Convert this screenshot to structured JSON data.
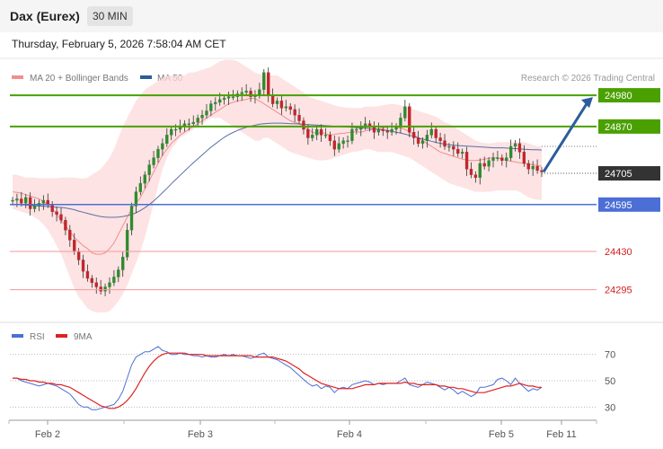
{
  "header": {
    "instrument": "Dax (Eurex)",
    "timeframe": "30 MIN",
    "datetime": "Thursday, February 5, 2026 7:58:04 AM CET"
  },
  "legend": {
    "ma20": "MA 20 + Bollinger Bands",
    "ma50": "MA 50",
    "credit": "Research © 2026 Trading Central",
    "rsi": "RSI",
    "rsi_ma": "9MA"
  },
  "colors": {
    "green": "#4aa000",
    "blue": "#4b6fd6",
    "red": "#e8453c",
    "candle_up": "#2e8b2e",
    "candle_down": "#c0262c",
    "band": "#fcdada",
    "ma20": "#f08f8f",
    "ma50": "#5a6fa8",
    "arrow": "#2b5d9c",
    "current": "#333333"
  },
  "chart_data": [
    {
      "type": "candlestick",
      "x_ticks": [
        "Feb 2",
        "Feb 3",
        "Feb 4",
        "Feb 5",
        "Feb 11"
      ],
      "ylim": [
        24180,
        25110
      ],
      "levels": [
        {
          "value": 24980,
          "label": "24980",
          "kind": "resistance"
        },
        {
          "value": 24870,
          "label": "24870",
          "kind": "resistance"
        },
        {
          "value": 24705,
          "label": "24705",
          "kind": "current"
        },
        {
          "value": 24595,
          "label": "24595",
          "kind": "pivot"
        },
        {
          "value": 24430,
          "label": "24430",
          "kind": "support"
        },
        {
          "value": 24295,
          "label": "24295",
          "kind": "support"
        }
      ],
      "close": [
        24610,
        24615,
        24600,
        24620,
        24580,
        24590,
        24600,
        24610,
        24595,
        24570,
        24560,
        24540,
        24505,
        24470,
        24430,
        24400,
        24360,
        24335,
        24320,
        24305,
        24290,
        24305,
        24320,
        24340,
        24365,
        24410,
        24505,
        24590,
        24640,
        24670,
        24700,
        24735,
        24760,
        24790,
        24810,
        24840,
        24860,
        24860,
        24870,
        24880,
        24880,
        24885,
        24900,
        24910,
        24925,
        24950,
        24955,
        24965,
        24970,
        24975,
        24975,
        24985,
        24990,
        24995,
        24975,
        24980,
        25000,
        25060,
        24980,
        24950,
        24960,
        24935,
        24940,
        24930,
        24910,
        24890,
        24860,
        24830,
        24840,
        24860,
        24840,
        24840,
        24820,
        24790,
        24810,
        24820,
        24820,
        24860,
        24860,
        24870,
        24880,
        24870,
        24850,
        24860,
        24855,
        24850,
        24860,
        24870,
        24900,
        24940,
        24850,
        24830,
        24810,
        24820,
        24840,
        24860,
        24830,
        24820,
        24800,
        24800,
        24790,
        24775,
        24780,
        24720,
        24700,
        24690,
        24740,
        24730,
        24750,
        24760,
        24760,
        24750,
        24760,
        24800,
        24810,
        24780,
        24740,
        24720,
        24730,
        24715,
        24710
      ],
      "ma20": [
        24640,
        24638,
        24635,
        24630,
        24625,
        24620,
        24615,
        24605,
        24595,
        24580,
        24560,
        24540,
        24520,
        24500,
        24480,
        24465,
        24450,
        24440,
        24425,
        24420,
        24420,
        24425,
        24440,
        24460,
        24490,
        24520,
        24550,
        24580,
        24600,
        24620,
        24650,
        24680,
        24710,
        24740,
        24770,
        24790,
        24810,
        24825,
        24840,
        24850,
        24860,
        24870,
        24880,
        24890,
        24900,
        24910,
        24920,
        24930,
        24940,
        24950,
        24955,
        24960,
        24962,
        24965,
        24970,
        24968,
        24960,
        24950,
        24940,
        24930,
        24920,
        24910,
        24900,
        24890,
        24885,
        24880,
        24870,
        24860,
        24850,
        24845,
        24850,
        24845,
        24840,
        24842,
        24845,
        24846,
        24848,
        24850,
        24852,
        24850,
        24855,
        24858,
        24860,
        24862,
        24865,
        24868,
        24870,
        24868,
        24865,
        24860,
        24850,
        24840,
        24830,
        24820,
        24810,
        24800,
        24790,
        24780,
        24775,
        24770,
        24765,
        24760,
        24755,
        24752,
        24750,
        24750,
        24752,
        24755,
        24758,
        24760,
        24760,
        24755,
        24750,
        24748,
        24745,
        24742,
        24740,
        24738,
        24735,
        24733,
        24730
      ],
      "band_upper": [
        24700,
        24700,
        24695,
        24690,
        24690,
        24690,
        24688,
        24688,
        24688,
        24688,
        24688,
        24690,
        24690,
        24690,
        24690,
        24688,
        24686,
        24690,
        24700,
        24710,
        24720,
        24740,
        24760,
        24790,
        24830,
        24870,
        24900,
        24930,
        24960,
        24980,
        25000,
        25010,
        25020,
        25030,
        25040,
        25050,
        25050,
        25050,
        25050,
        25050,
        25060,
        25060,
        25065,
        25070,
        25075,
        25080,
        25090,
        25100,
        25105,
        25105,
        25105,
        25100,
        25090,
        25080,
        25070,
        25060,
        25055,
        25050,
        25050,
        25050,
        25050,
        25040,
        25030,
        25020,
        25010,
        25000,
        24990,
        24975,
        24970,
        24965,
        24960,
        24955,
        24950,
        24945,
        24940,
        24938,
        24936,
        24935,
        24935,
        24935,
        24940,
        24940,
        24940,
        24942,
        24945,
        24948,
        24950,
        24948,
        24945,
        24940,
        24935,
        24930,
        24925,
        24920,
        24915,
        24910,
        24905,
        24895,
        24885,
        24880,
        24870,
        24860,
        24850,
        24840,
        24830,
        24820,
        24815,
        24812,
        24810,
        24812,
        24815,
        24815,
        24815,
        24815,
        24815,
        24815,
        24815,
        24810,
        24805,
        24800,
        24800
      ],
      "band_lower": [
        24580,
        24575,
        24570,
        24565,
        24560,
        24550,
        24540,
        24525,
        24505,
        24480,
        24450,
        24420,
        24380,
        24340,
        24300,
        24270,
        24250,
        24230,
        24220,
        24215,
        24215,
        24215,
        24220,
        24235,
        24255,
        24280,
        24310,
        24350,
        24390,
        24430,
        24480,
        24540,
        24600,
        24660,
        24720,
        24760,
        24790,
        24810,
        24830,
        24840,
        24850,
        24860,
        24870,
        24880,
        24890,
        24900,
        24900,
        24900,
        24890,
        24880,
        24870,
        24860,
        24850,
        24840,
        24830,
        24820,
        24820,
        24830,
        24830,
        24820,
        24810,
        24800,
        24790,
        24780,
        24775,
        24770,
        24765,
        24760,
        24755,
        24752,
        24750,
        24752,
        24755,
        24760,
        24765,
        24770,
        24775,
        24780,
        24782,
        24785,
        24790,
        24790,
        24785,
        24780,
        24780,
        24780,
        24780,
        24775,
        24770,
        24765,
        24760,
        24750,
        24740,
        24730,
        24720,
        24710,
        24700,
        24690,
        24680,
        24670,
        24665,
        24660,
        24655,
        24650,
        24645,
        24640,
        24640,
        24640,
        24640,
        24642,
        24645,
        24645,
        24645,
        24645,
        24645,
        24640,
        24630,
        24620,
        24615,
        24612,
        24610
      ],
      "ma50": [
        24595,
        24595,
        24594,
        24593,
        24592,
        24591,
        24590,
        24589,
        24588,
        24587,
        24586,
        24585,
        24583,
        24580,
        24577,
        24572,
        24568,
        24564,
        24560,
        24556,
        24553,
        24551,
        24550,
        24550,
        24551,
        24553,
        24556,
        24560,
        24566,
        24574,
        24584,
        24595,
        24608,
        24622,
        24637,
        24652,
        24668,
        24683,
        24698,
        24713,
        24728,
        24742,
        24756,
        24770,
        24784,
        24797,
        24809,
        24821,
        24832,
        24841,
        24849,
        24856,
        24862,
        24867,
        24871,
        24875,
        24878,
        24880,
        24881,
        24882,
        24882,
        24882,
        24881,
        24880,
        24880,
        24879,
        24878,
        24877,
        24876,
        24875,
        24874,
        24873,
        24872,
        24871,
        24870,
        24869,
        24868,
        24867,
        24866,
        24865,
        24864,
        24863,
        24862,
        24860,
        24858,
        24856,
        24853,
        24850,
        24847,
        24843,
        24839,
        24835,
        24830,
        24826,
        24822,
        24818,
        24814,
        24811,
        24808,
        24806,
        24804,
        24803,
        24802,
        24801,
        24800,
        24799,
        24798,
        24797,
        24796,
        24795,
        24795,
        24795,
        24794,
        24793,
        24792,
        24791,
        24790,
        24789,
        24788,
        24788,
        24787
      ],
      "forecast_target": 24980
    },
    {
      "type": "line",
      "name": "RSI",
      "y_ticks": [
        70,
        50,
        30
      ],
      "ylim": [
        20,
        80
      ],
      "rsi": [
        52,
        52,
        50,
        49,
        48,
        47,
        46,
        47,
        48,
        47,
        46,
        44,
        42,
        40,
        36,
        32,
        30,
        30,
        28,
        28,
        29,
        30,
        31,
        32,
        36,
        42,
        52,
        62,
        68,
        70,
        72,
        72,
        74,
        76,
        73,
        72,
        70,
        70,
        71,
        70,
        70,
        69,
        69,
        68,
        69,
        68,
        68,
        69,
        70,
        69,
        70,
        69,
        69,
        68,
        67,
        68,
        70,
        71,
        68,
        67,
        66,
        64,
        62,
        60,
        57,
        54,
        51,
        48,
        46,
        47,
        44,
        46,
        45,
        41,
        44,
        45,
        44,
        47,
        48,
        49,
        50,
        49,
        47,
        48,
        47,
        48,
        48,
        48,
        50,
        52,
        47,
        46,
        45,
        47,
        49,
        48,
        47,
        45,
        43,
        45,
        43,
        40,
        42,
        40,
        38,
        40,
        45,
        45,
        46,
        47,
        51,
        52,
        50,
        47,
        52,
        48,
        45,
        42,
        44,
        43,
        45
      ],
      "rsi_ma": [
        52,
        52,
        51,
        51,
        50,
        50,
        49,
        49,
        48,
        48,
        47,
        47,
        46,
        45,
        43,
        41,
        39,
        37,
        35,
        33,
        31,
        30,
        29,
        29,
        30,
        32,
        35,
        39,
        44,
        50,
        56,
        61,
        65,
        68,
        70,
        71,
        71,
        71,
        71,
        71,
        70,
        70,
        70,
        70,
        69,
        69,
        69,
        69,
        69,
        69,
        69,
        69,
        69,
        69,
        69,
        68,
        68,
        68,
        68,
        68,
        67,
        66,
        65,
        63,
        61,
        59,
        56,
        54,
        52,
        50,
        48,
        47,
        46,
        45,
        44,
        44,
        44,
        44,
        45,
        46,
        47,
        47,
        47,
        48,
        48,
        48,
        48,
        48,
        48,
        49,
        48,
        48,
        47,
        47,
        47,
        47,
        47,
        46,
        46,
        45,
        45,
        44,
        44,
        43,
        42,
        41,
        41,
        41,
        42,
        43,
        44,
        45,
        46,
        46,
        47,
        48,
        47,
        46,
        46,
        45,
        45
      ]
    }
  ]
}
